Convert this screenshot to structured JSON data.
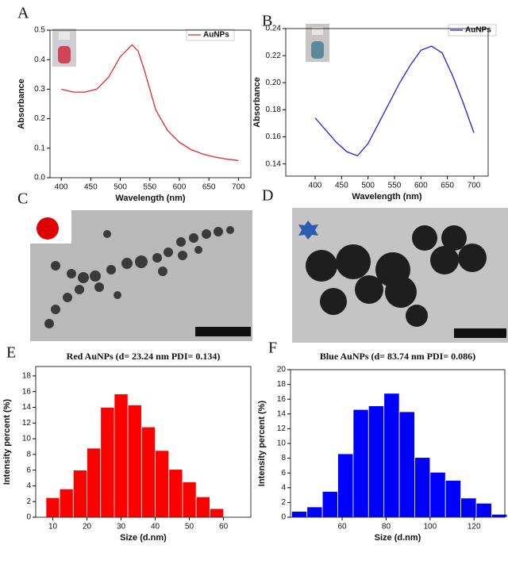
{
  "panel_labels": [
    "A",
    "B",
    "C",
    "D",
    "E",
    "F"
  ],
  "chart_data": [
    {
      "type": "line",
      "x_label": "Wavelength (nm)",
      "y_label": "Absorbance",
      "x": [
        400,
        420,
        440,
        460,
        480,
        500,
        520,
        530,
        540,
        560,
        580,
        600,
        620,
        640,
        660,
        680,
        700
      ],
      "series": [
        {
          "name": "AuNPs",
          "color": "#e8262b",
          "values": [
            0.3,
            0.29,
            0.29,
            0.3,
            0.34,
            0.41,
            0.45,
            0.43,
            0.37,
            0.23,
            0.16,
            0.12,
            0.095,
            0.08,
            0.07,
            0.063,
            0.058
          ]
        }
      ],
      "xlim": [
        381,
        721
      ],
      "xticks": [
        400,
        450,
        500,
        550,
        600,
        650,
        700
      ],
      "ylim": [
        0,
        0.5
      ],
      "yticks": [
        {
          "value": 0,
          "label": "0.0"
        },
        0.1,
        0.2,
        0.3,
        0.4,
        0.5
      ]
    },
    {
      "type": "line",
      "x_label": "Wavelength (nm)",
      "y_label": "Absorbance",
      "x": [
        400,
        420,
        440,
        460,
        480,
        500,
        520,
        540,
        560,
        580,
        600,
        620,
        640,
        660,
        680,
        700
      ],
      "series": [
        {
          "name": "AuNPs",
          "color": "#1f1fe0",
          "values": [
            0.174,
            0.165,
            0.156,
            0.149,
            0.146,
            0.155,
            0.17,
            0.185,
            0.2,
            0.213,
            0.224,
            0.227,
            0.222,
            0.205,
            0.185,
            0.163
          ]
        }
      ],
      "xlim": [
        344.5,
        727
      ],
      "xticks": [
        400,
        450,
        500,
        550,
        600,
        650,
        700
      ],
      "ylim": [
        0.131,
        0.24
      ],
      "yticks": [
        0.14,
        0.16,
        0.18,
        {
          "value": 0.2,
          "label": "0.20"
        },
        0.22,
        0.24
      ]
    },
    {
      "type": "histogram",
      "title": "Red AuNPs (d= 23.24 nm PDI= 0.134)",
      "title_color": "#ee1c1c",
      "x_label": "Size (d.nm)",
      "y_label": "Intensity percent (%)",
      "color": "#ff0000",
      "bins": [
        8,
        12,
        16,
        20,
        24,
        28,
        32,
        36,
        40,
        44,
        48,
        52,
        56,
        60
      ],
      "values": [
        2.5,
        3.6,
        6.0,
        8.8,
        14.0,
        15.7,
        14.3,
        11.5,
        8.5,
        6.1,
        4.5,
        2.6,
        1.1
      ],
      "xlim": [
        5,
        68
      ],
      "xticks": [
        10,
        20,
        30,
        40,
        50,
        60
      ],
      "ylim": [
        0,
        19.2
      ],
      "yticks": [
        0,
        2,
        4,
        6,
        8,
        10,
        12,
        14,
        16,
        18
      ]
    },
    {
      "type": "histogram",
      "title": "Blue AuNPs (d= 83.74 nm PDI= 0.086)",
      "title_color": "#4a72c4",
      "x_label": "Size (d.nm)",
      "y_label": "Intensity percent (%)",
      "color": "#0000ff",
      "bins": [
        37,
        44,
        51,
        58,
        65,
        72,
        79,
        86,
        93,
        100,
        107,
        114,
        121,
        128,
        135
      ],
      "values": [
        0.8,
        1.4,
        3.5,
        8.6,
        14.6,
        15.1,
        16.8,
        14.3,
        8.1,
        6.1,
        5.0,
        2.6,
        1.9,
        0.4
      ],
      "xlim": [
        36.5,
        134
      ],
      "xticks": [
        60,
        80,
        100,
        120
      ],
      "ylim": [
        0,
        20
      ],
      "yticks": [
        0,
        2,
        4,
        6,
        8,
        10,
        12,
        14,
        16,
        18,
        20
      ]
    }
  ]
}
